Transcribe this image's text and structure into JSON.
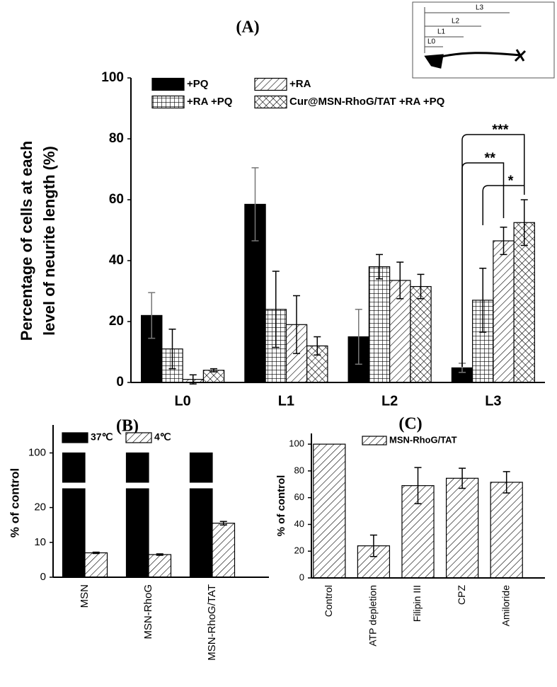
{
  "chart_data": [
    {
      "type": "bar",
      "panel": "(A)",
      "y_label": [
        "Percentage of cells at each",
        "level of neurite length (%)"
      ],
      "categories": [
        "L0",
        "L1",
        "L2",
        "L3"
      ],
      "ylim": [
        0,
        100
      ],
      "yticks": [
        0,
        20,
        40,
        60,
        80,
        100
      ],
      "series": [
        {
          "name": "+PQ",
          "color": "#000000",
          "pattern": "solid",
          "values": [
            22,
            58.5,
            15,
            4.8
          ],
          "errors": [
            7.5,
            12,
            9,
            1.5
          ]
        },
        {
          "name": "+RA +PQ",
          "color": "#000000",
          "pattern": "grid",
          "values": [
            11,
            24,
            38,
            27
          ],
          "errors": [
            6.5,
            12.5,
            4,
            10.5
          ]
        },
        {
          "name": "+RA",
          "color": "#000000",
          "pattern": "hatch",
          "values": [
            1,
            19,
            33.5,
            46.5
          ],
          "errors": [
            1.5,
            9.5,
            6,
            4.5
          ]
        },
        {
          "name": "Cur@MSN-RhoG/TAT +RA +PQ",
          "color": "#000000",
          "pattern": "crosshatch",
          "values": [
            4,
            12,
            31.5,
            52.5
          ],
          "errors": [
            0.5,
            3,
            4,
            7.5
          ]
        }
      ],
      "annotations": [
        "***",
        "**",
        "*"
      ]
    },
    {
      "type": "bar",
      "panel": "(B)",
      "y_label": [
        "% of control"
      ],
      "categories": [
        "MSN",
        "MSN-RhoG",
        "MSN-RhoG/TAT"
      ],
      "ylim": [
        0,
        105
      ],
      "y_break": [
        25,
        95
      ],
      "yticks": [
        0,
        10,
        20,
        100
      ],
      "series": [
        {
          "name": "37℃",
          "color": "#000000",
          "pattern": "solid",
          "values": [
            100,
            100,
            100
          ]
        },
        {
          "name": "4℃",
          "color": "#000000",
          "pattern": "hatch",
          "values": [
            7,
            6.5,
            15.5
          ],
          "errors": [
            0.2,
            0.2,
            0.5
          ]
        }
      ]
    },
    {
      "type": "bar",
      "panel": "(C)",
      "y_label": [
        "% of control"
      ],
      "categories": [
        "Control",
        "ATP depletion",
        "Filipin III",
        "CPZ",
        "Amiloride"
      ],
      "ylim": [
        0,
        108
      ],
      "yticks": [
        0,
        20,
        40,
        60,
        80,
        100
      ],
      "series": [
        {
          "name": "MSN-RhoG/TAT",
          "color": "#000000",
          "pattern": "hatch",
          "values": [
            100,
            24,
            69,
            74.5,
            71.5
          ],
          "errors": [
            null,
            8,
            13.5,
            7.5,
            8
          ]
        }
      ]
    }
  ],
  "inset_labels": [
    "L3",
    "L2",
    "L1",
    "L0"
  ]
}
